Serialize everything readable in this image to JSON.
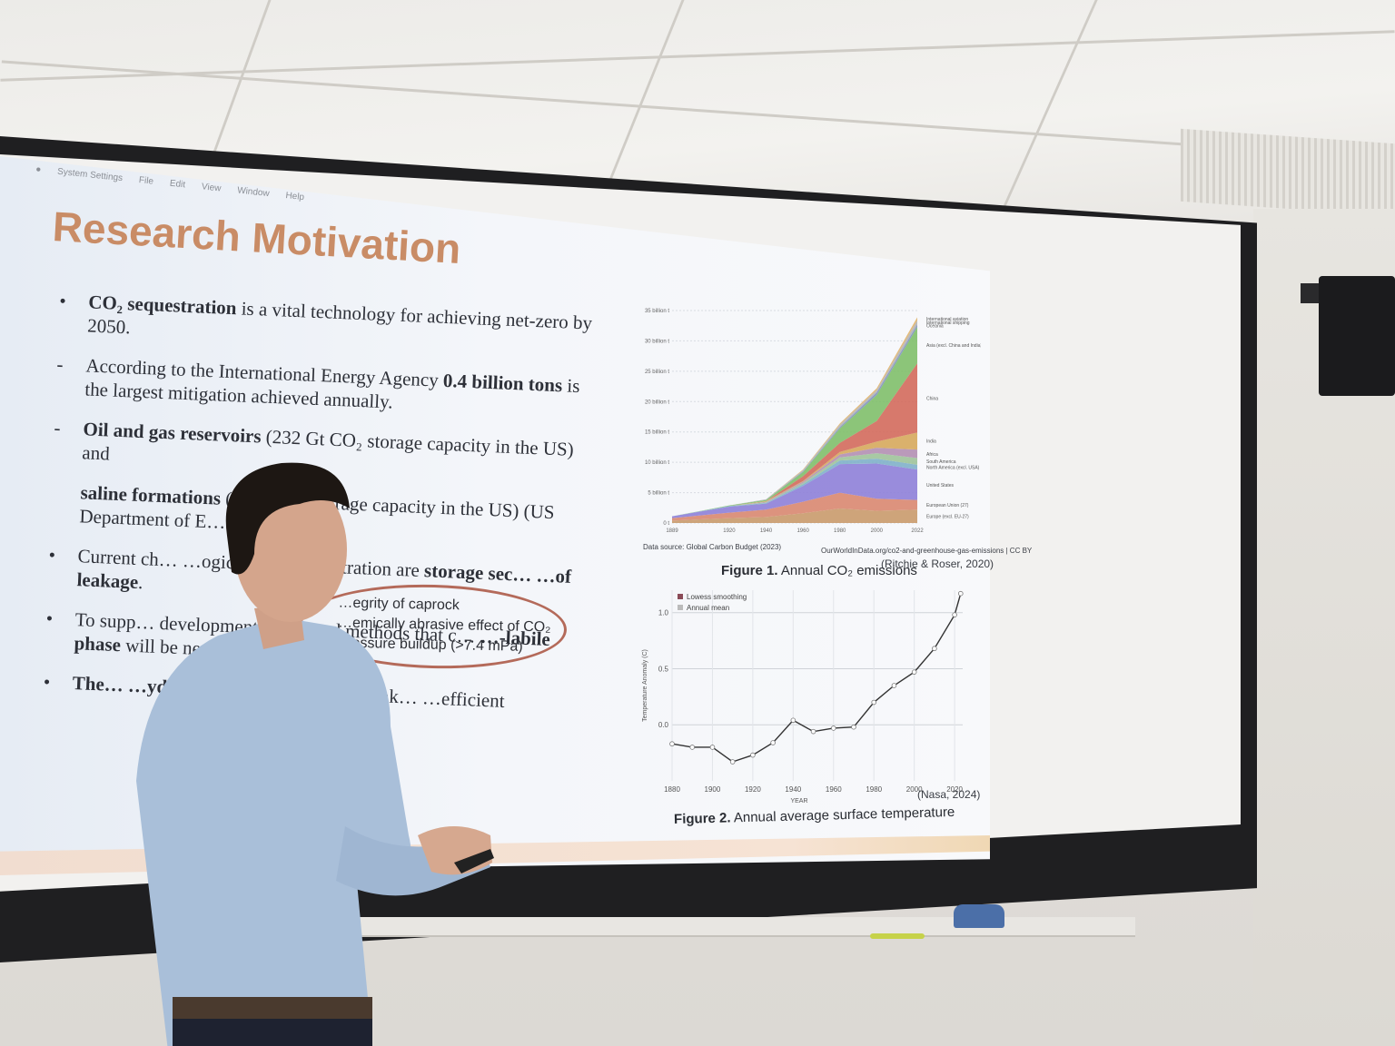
{
  "menubar": {
    "items": [
      "System Settings",
      "File",
      "Edit",
      "View",
      "Window",
      "Help"
    ]
  },
  "slide": {
    "title": "Research Motivation",
    "bullets": [
      {
        "mark": "•",
        "bold": "CO₂ sequestration",
        "text": " is a vital technology for achieving net-zero by 2050."
      },
      {
        "mark": "-",
        "pre": "According to the International Energy Agency ",
        "bold": "0.4 billion tons",
        "text": " is the largest mitigation achieved annually."
      },
      {
        "mark": "-",
        "bold": "Oil and gas reservoirs",
        "text": " (232 Gt CO₂ storage capacity in the US) and"
      },
      {
        "mark": "",
        "bold": "saline formations",
        "text": " (20… CO₂ storage capacity in the US) (US Department of E…"
      },
      {
        "mark": "•",
        "pre": "Current ch… …ogical CO₂ sequestration are ",
        "bold": "storage sec… …of leakage",
        "text": "."
      },
      {
        "mark": "•",
        "pre": "To supp… development, improved methods that c… ",
        "bold": "…-labile phase",
        "text": " will be needed to addr…"
      },
      {
        "mark": "•",
        "bold": "The… …ydration",
        "text": " limits its trapping, mak… …efficient"
      }
    ],
    "circled": [
      "…egrity of caprock",
      "…emically abrasive effect of CO₂",
      "Pressure buildup (>7.4 mPa)"
    ]
  },
  "figure1": {
    "caption_bold": "Figure 1.",
    "caption": " Annual CO₂ emissions",
    "citation": "(Ritchie & Roser, 2020)",
    "source_left": "Data source: Global Carbon Budget (2023)",
    "source_right": "OurWorldInData.org/co2-and-greenhouse-gas-emissions | CC BY"
  },
  "figure2": {
    "caption_bold": "Figure 2.",
    "caption": " Annual average surface temperature",
    "citation": "(Nasa, 2024)",
    "legend": [
      "Lowess smoothing",
      "Annual mean"
    ],
    "ylabel": "Temperature Anomaly (C)",
    "xlabel": "YEAR"
  },
  "chart_data": [
    {
      "type": "area",
      "x": [
        1889,
        1920,
        1940,
        1960,
        1980,
        2000,
        2022
      ],
      "xticks": [
        "1889",
        "1920",
        "1940",
        "1960",
        "1980",
        "2000",
        "2022"
      ],
      "yticks": [
        "0 t",
        "5 billion t",
        "10 billion t",
        "15 billion t",
        "20 billion t",
        "25 billion t",
        "30 billion t",
        "35 billion t"
      ],
      "ylim": [
        0,
        35
      ],
      "series": [
        {
          "name": "Europe (excl. EU-27)",
          "color": "#c99a6b",
          "values": [
            0.4,
            0.8,
            1.0,
            1.6,
            2.4,
            2.0,
            2.2
          ]
        },
        {
          "name": "European Union (27)",
          "color": "#d98770",
          "values": [
            0.4,
            0.9,
            1.2,
            1.9,
            2.6,
            2.0,
            1.6
          ]
        },
        {
          "name": "United States",
          "color": "#8e80d8",
          "values": [
            0.3,
            1.0,
            1.0,
            2.6,
            4.7,
            5.8,
            5.0
          ]
        },
        {
          "name": "North America (excl. USA)",
          "color": "#7fb0c9",
          "values": [
            0.0,
            0.1,
            0.1,
            0.3,
            0.6,
            0.8,
            0.8
          ]
        },
        {
          "name": "South America",
          "color": "#9fc39a",
          "values": [
            0.0,
            0.0,
            0.1,
            0.2,
            0.5,
            0.9,
            1.1
          ]
        },
        {
          "name": "Africa",
          "color": "#b28fb2",
          "values": [
            0.0,
            0.0,
            0.1,
            0.2,
            0.5,
            0.9,
            1.4
          ]
        },
        {
          "name": "India",
          "color": "#d6a85c",
          "values": [
            0.0,
            0.0,
            0.1,
            0.1,
            0.4,
            1.0,
            2.8
          ]
        },
        {
          "name": "China",
          "color": "#d36a5c",
          "values": [
            0.0,
            0.0,
            0.0,
            0.8,
            1.5,
            3.4,
            11.4
          ]
        },
        {
          "name": "Asia (excl. China and India)",
          "color": "#7fbf6a",
          "values": [
            0.0,
            0.1,
            0.2,
            0.7,
            2.4,
            4.3,
            6.0
          ]
        },
        {
          "name": "Oceania",
          "color": "#7e90c0",
          "values": [
            0.0,
            0.0,
            0.0,
            0.1,
            0.2,
            0.4,
            0.4
          ]
        },
        {
          "name": "International shipping",
          "color": "#b4b4b4",
          "values": [
            0.0,
            0.0,
            0.1,
            0.2,
            0.4,
            0.4,
            0.7
          ]
        },
        {
          "name": "International aviation",
          "color": "#e0b36a",
          "values": [
            0.0,
            0.0,
            0.0,
            0.1,
            0.2,
            0.3,
            0.5
          ]
        }
      ]
    },
    {
      "type": "line",
      "xticks": [
        "1880",
        "1900",
        "1920",
        "1940",
        "1960",
        "1980",
        "2000",
        "2020"
      ],
      "yticks": [
        "0.0",
        "0.5",
        "1.0"
      ],
      "xlim": [
        1880,
        2024
      ],
      "ylim": [
        -0.5,
        1.2
      ],
      "x": [
        1880,
        1890,
        1900,
        1910,
        1920,
        1930,
        1940,
        1950,
        1960,
        1970,
        1980,
        1990,
        2000,
        2010,
        2020,
        2023
      ],
      "series": [
        {
          "name": "Lowess smoothing",
          "values": [
            -0.17,
            -0.2,
            -0.2,
            -0.33,
            -0.27,
            -0.16,
            0.04,
            -0.06,
            -0.03,
            -0.02,
            0.2,
            0.35,
            0.47,
            0.68,
            0.98,
            1.17
          ]
        }
      ]
    }
  ]
}
